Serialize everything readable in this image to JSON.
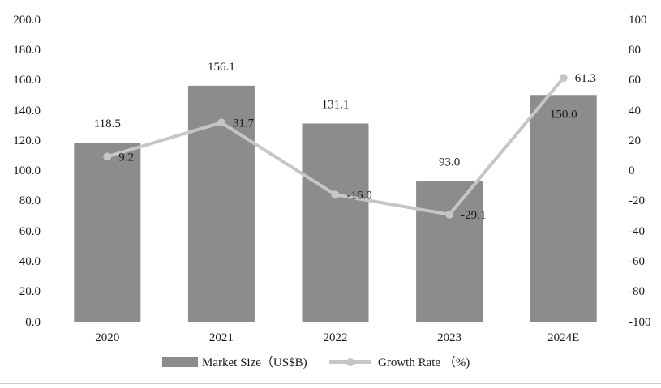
{
  "chart_data": {
    "type": "bar",
    "categories": [
      "2020",
      "2021",
      "2022",
      "2023",
      "2024E"
    ],
    "series": [
      {
        "name": "Market Size（US$B)",
        "kind": "bar",
        "axis": "left",
        "values": [
          118.5,
          156.1,
          131.1,
          93.0,
          150.0
        ],
        "labels": [
          "118.5",
          "156.1",
          "131.1",
          "93.0",
          "150.0"
        ],
        "color": "#8c8c8c"
      },
      {
        "name": "Growth Rate （%)",
        "kind": "line",
        "axis": "right",
        "values": [
          9.2,
          31.7,
          -16.0,
          -29.1,
          61.3
        ],
        "labels": [
          "9.2",
          "31.7",
          "-16.0",
          "-29.1",
          "61.3"
        ],
        "color": "#c6c6c6"
      }
    ],
    "y_left": {
      "lim": [
        0,
        200
      ],
      "ticks": [
        "200.0",
        "180.0",
        "160.0",
        "140.0",
        "120.0",
        "100.0",
        "80.0",
        "60.0",
        "40.0",
        "20.0",
        "0.0"
      ]
    },
    "y_right": {
      "lim": [
        -100,
        100
      ],
      "ticks": [
        "100",
        "80",
        "60",
        "40",
        "20",
        "0",
        "-20",
        "-40",
        "-60",
        "-80",
        "-100"
      ]
    },
    "legend": {
      "position": "bottom",
      "items": [
        "Market Size（US$B)",
        "Growth Rate （%)"
      ]
    },
    "grid": false
  }
}
